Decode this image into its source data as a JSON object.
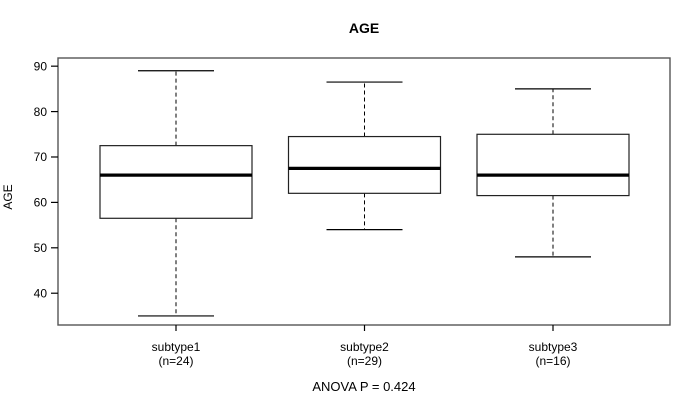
{
  "title": "AGE",
  "footer": "ANOVA P = 0.424",
  "colors": {
    "line": "#000000",
    "frame": "#555555",
    "background": "#ffffff",
    "text": "#000000"
  },
  "chart_data": {
    "type": "boxplot",
    "title": "AGE",
    "xlabel": "",
    "ylabel": "AGE",
    "ylim": [
      33,
      91.8
    ],
    "yticks": [
      40,
      50,
      60,
      70,
      80,
      90
    ],
    "grid": false,
    "whisker_style": "dashed",
    "categories": [
      "subtype1",
      "subtype2",
      "subtype3"
    ],
    "category_sublabels": [
      "(n=24)",
      "(n=29)",
      "(n=16)"
    ],
    "series": [
      {
        "name": "subtype1",
        "n": 24,
        "whisker_low": 35,
        "q1": 56.5,
        "median": 66,
        "q3": 72.5,
        "whisker_high": 89
      },
      {
        "name": "subtype2",
        "n": 29,
        "whisker_low": 54,
        "q1": 62,
        "median": 67.5,
        "q3": 74.5,
        "whisker_high": 86.5
      },
      {
        "name": "subtype3",
        "n": 16,
        "whisker_low": 48,
        "q1": 61.5,
        "median": 66,
        "q3": 75,
        "whisker_high": 85
      }
    ],
    "annotation": "ANOVA P = 0.424"
  }
}
